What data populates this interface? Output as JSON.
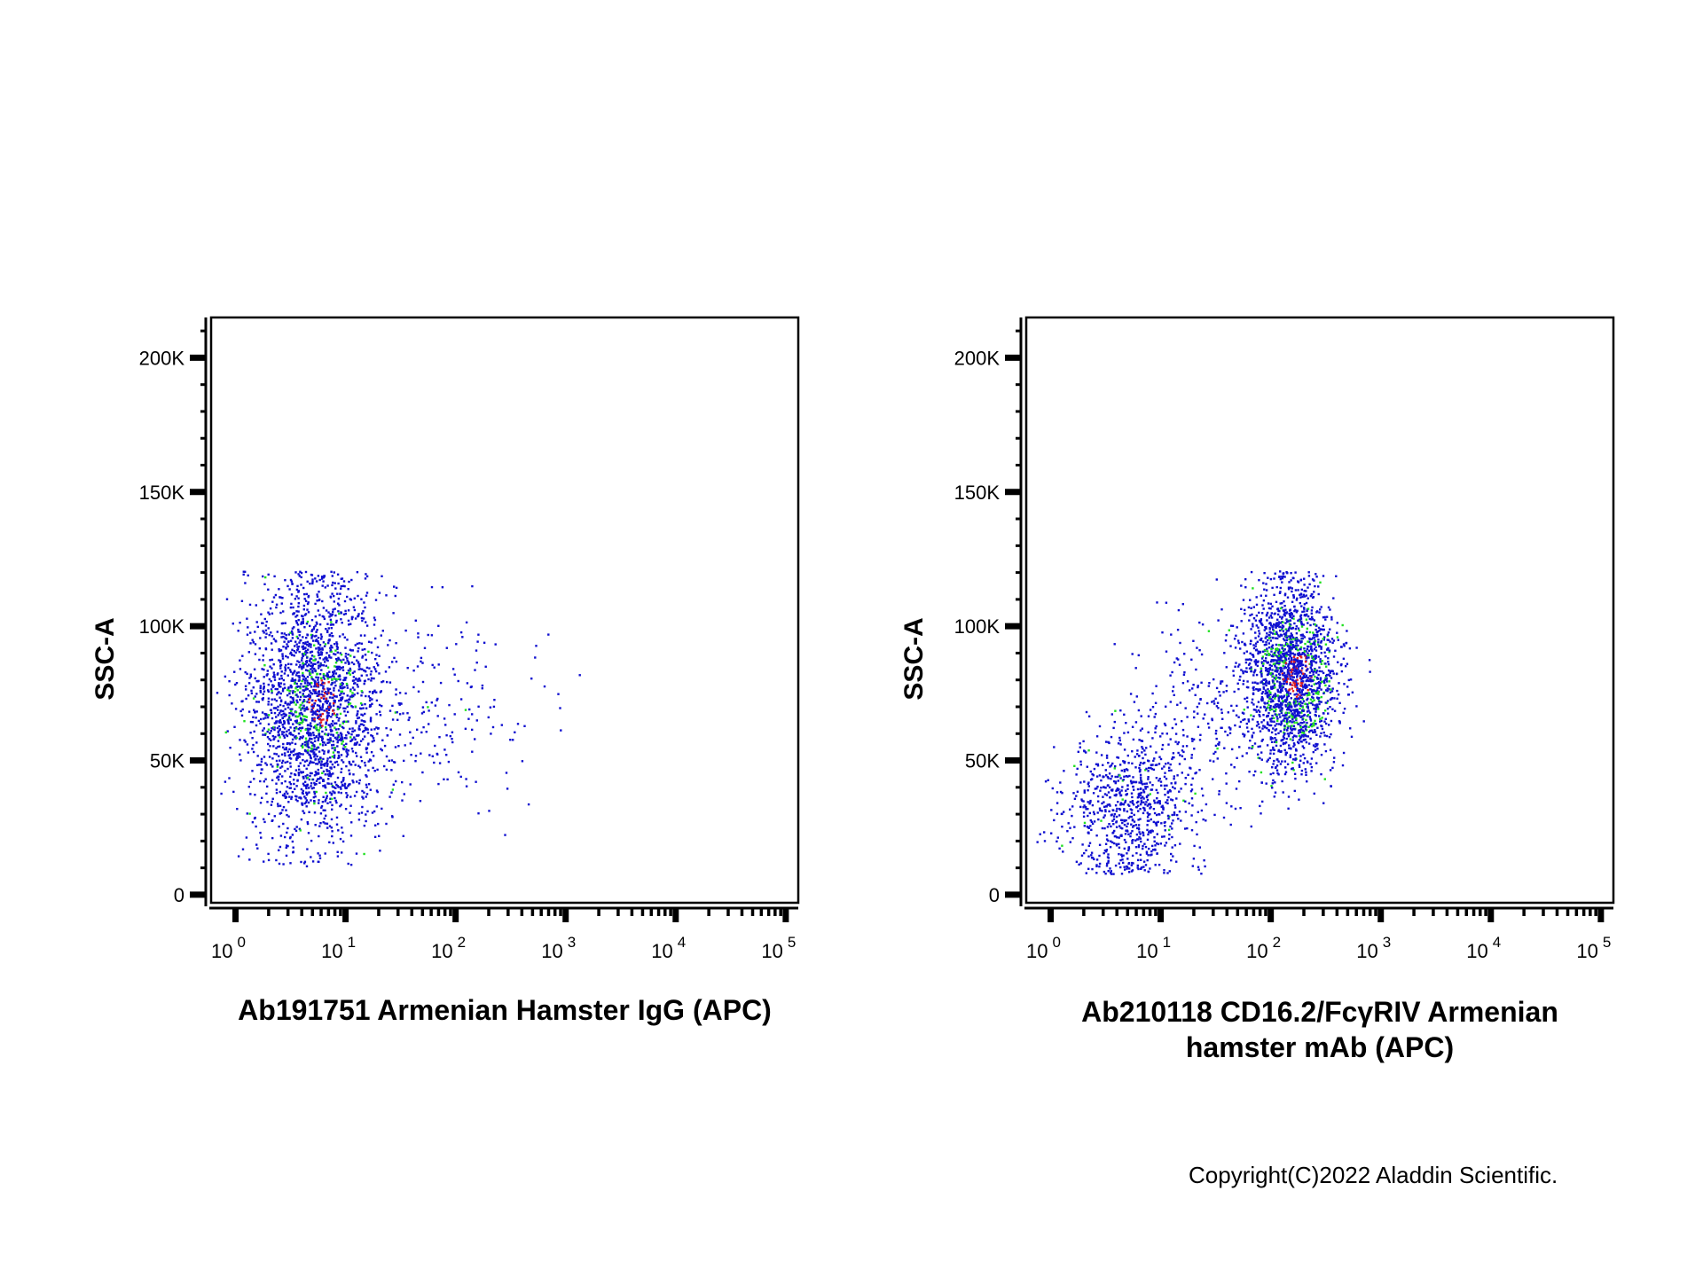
{
  "chart_data": [
    {
      "type": "scatter",
      "xscale": "log",
      "xlim": [
        0.6,
        130000
      ],
      "ylim": [
        -3000,
        215000
      ],
      "x_ticks": [
        {
          "base": "10",
          "exp": "0"
        },
        {
          "base": "10",
          "exp": "1"
        },
        {
          "base": "10",
          "exp": "2"
        },
        {
          "base": "10",
          "exp": "3"
        },
        {
          "base": "10",
          "exp": "4"
        },
        {
          "base": "10",
          "exp": "5"
        }
      ],
      "y_ticks": [
        "0",
        "50K",
        "100K",
        "150K",
        "200K"
      ],
      "y_tick_values": [
        0,
        50000,
        100000,
        150000,
        200000
      ],
      "ylabel": "SSC-A",
      "xlabel_lines": [
        "Ab191751 Armenian Hamster IgG (APC)"
      ],
      "colors": {
        "low": "#1010d0",
        "mid": "#20e020",
        "high": "#e02020"
      },
      "populations": [
        {
          "n": 2300,
          "x_center": 5,
          "x_spread_log10": 0.3,
          "y_center": 70000,
          "y_spread": 24000,
          "y_min": 10000,
          "y_max": 121000
        },
        {
          "n": 200,
          "x_center": 60,
          "x_spread_log10": 0.45,
          "y_center": 70000,
          "y_spread": 20000,
          "y_min": 15000,
          "y_max": 118000
        }
      ],
      "density": {
        "x_center": 6,
        "y_center": 72000
      }
    },
    {
      "type": "scatter",
      "xscale": "log",
      "xlim": [
        0.6,
        130000
      ],
      "ylim": [
        -3000,
        215000
      ],
      "x_ticks": [
        {
          "base": "10",
          "exp": "0"
        },
        {
          "base": "10",
          "exp": "1"
        },
        {
          "base": "10",
          "exp": "2"
        },
        {
          "base": "10",
          "exp": "3"
        },
        {
          "base": "10",
          "exp": "4"
        },
        {
          "base": "10",
          "exp": "5"
        }
      ],
      "y_ticks": [
        "0",
        "50K",
        "100K",
        "150K",
        "200K"
      ],
      "y_tick_values": [
        0,
        50000,
        100000,
        150000,
        200000
      ],
      "ylabel": "SSC-A",
      "xlabel_lines": [
        "Ab210118 CD16.2/FcγRIV Armenian",
        "hamster mAb (APC)"
      ],
      "colors": {
        "low": "#1010d0",
        "mid": "#20e020",
        "high": "#e02020"
      },
      "populations": [
        {
          "n": 800,
          "x_center": 5,
          "x_spread_log10": 0.3,
          "y_center": 33000,
          "y_spread": 14000,
          "y_min": 8000,
          "y_max": 75000
        },
        {
          "n": 1900,
          "x_center": 150,
          "x_spread_log10": 0.2,
          "y_center": 82000,
          "y_spread": 17000,
          "y_min": 28000,
          "y_max": 121000
        },
        {
          "n": 250,
          "x_center": 30,
          "x_spread_log10": 0.35,
          "y_center": 65000,
          "y_spread": 18000,
          "y_min": 20000,
          "y_max": 110000
        }
      ],
      "density": {
        "x_center": 170,
        "y_center": 82000
      }
    }
  ],
  "copyright": "Copyright(C)2022 Aladdin Scientific."
}
